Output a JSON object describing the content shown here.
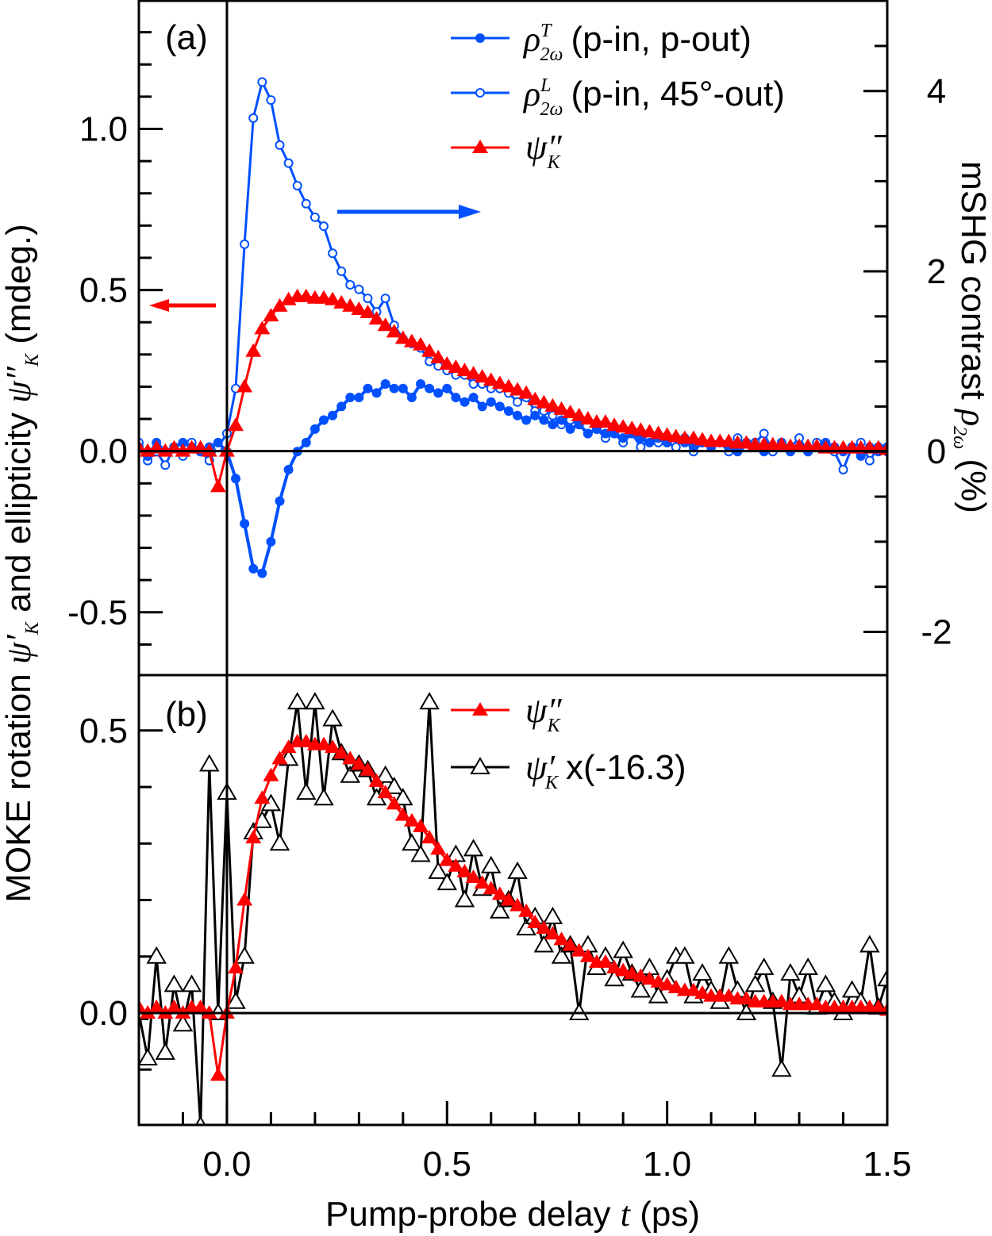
{
  "chart_data": [
    {
      "type": "line",
      "panel_label": "(a)",
      "xlim": [
        -0.2,
        1.5
      ],
      "ylim_left": [
        -0.695,
        1.4
      ],
      "ylim_right": [
        -2.48,
        5.01
      ],
      "left_ticks": [
        "1.0",
        "0.5",
        "0.0",
        "-0.5"
      ],
      "right_ticks": [
        "4",
        "2",
        "0",
        "-2"
      ],
      "x": [
        -0.2,
        -0.18,
        -0.16,
        -0.14,
        -0.12,
        -0.1,
        -0.08,
        -0.06,
        -0.04,
        -0.02,
        0.0,
        0.02,
        0.04,
        0.06,
        0.08,
        0.1,
        0.12,
        0.14,
        0.16,
        0.18,
        0.2,
        0.22,
        0.24,
        0.26,
        0.28,
        0.3,
        0.32,
        0.34,
        0.36,
        0.38,
        0.4,
        0.42,
        0.44,
        0.46,
        0.48,
        0.5,
        0.52,
        0.54,
        0.56,
        0.58,
        0.6,
        0.62,
        0.64,
        0.66,
        0.68,
        0.7,
        0.72,
        0.74,
        0.76,
        0.78,
        0.8,
        0.82,
        0.84,
        0.86,
        0.88,
        0.9,
        0.92,
        0.94,
        0.96,
        0.98,
        1.0,
        1.02,
        1.04,
        1.06,
        1.08,
        1.1,
        1.12,
        1.14,
        1.16,
        1.18,
        1.2,
        1.22,
        1.24,
        1.26,
        1.28,
        1.3,
        1.32,
        1.34,
        1.36,
        1.38,
        1.4,
        1.42,
        1.44,
        1.46,
        1.48,
        1.5
      ],
      "series": [
        {
          "name": "rho_T",
          "axis": "right",
          "color": "#0050ff",
          "marker": "filled-circle",
          "values": [
            0.05,
            -0.05,
            0.1,
            0.0,
            0.05,
            0.1,
            0.05,
            0.0,
            0.05,
            0.1,
            0.0,
            -0.3,
            -0.8,
            -1.3,
            -1.35,
            -1.0,
            -0.55,
            -0.2,
            0.0,
            0.1,
            0.25,
            0.35,
            0.4,
            0.5,
            0.6,
            0.6,
            0.7,
            0.65,
            0.75,
            0.7,
            0.7,
            0.6,
            0.75,
            0.7,
            0.65,
            0.7,
            0.6,
            0.55,
            0.6,
            0.5,
            0.55,
            0.5,
            0.45,
            0.4,
            0.35,
            0.4,
            0.35,
            0.3,
            0.35,
            0.25,
            0.3,
            0.2,
            0.25,
            0.2,
            0.2,
            0.15,
            0.2,
            0.15,
            0.1,
            0.15,
            0.1,
            0.15,
            0.1,
            0.05,
            0.1,
            0.05,
            0.1,
            0.05,
            0.0,
            0.1,
            0.05,
            0.0,
            0.05,
            0.1,
            0.0,
            0.05,
            0.0,
            0.05,
            0.1,
            0.05,
            0.0,
            0.05,
            -0.05,
            0.05,
            0.0,
            0.05
          ]
        },
        {
          "name": "rho_L",
          "axis": "right",
          "color": "#0050ff",
          "marker": "open-circle",
          "values": [
            0.1,
            -0.1,
            0.0,
            -0.15,
            0.05,
            -0.05,
            0.1,
            0.0,
            -0.1,
            0.05,
            0.2,
            0.7,
            2.3,
            3.7,
            4.1,
            3.9,
            3.4,
            3.2,
            2.95,
            2.75,
            2.6,
            2.5,
            2.2,
            2.0,
            1.85,
            1.8,
            1.7,
            1.55,
            1.7,
            1.4,
            1.25,
            1.2,
            1.15,
            1.0,
            0.95,
            0.9,
            0.85,
            0.85,
            0.75,
            0.75,
            0.7,
            0.7,
            0.65,
            0.55,
            0.6,
            0.45,
            0.45,
            0.4,
            0.3,
            0.35,
            0.3,
            0.2,
            0.25,
            0.15,
            0.2,
            0.1,
            0.2,
            0.05,
            0.15,
            0.1,
            0.1,
            0.05,
            0.15,
            0.0,
            0.1,
            0.05,
            0.1,
            0.0,
            0.15,
            0.05,
            0.1,
            0.2,
            0.0,
            0.1,
            0.05,
            0.15,
            0.0,
            0.1,
            0.05,
            0.0,
            -0.2,
            0.05,
            0.1,
            -0.1,
            0.05,
            0.0
          ]
        },
        {
          "name": "psi_K_dd",
          "axis": "left",
          "color": "#ff0000",
          "marker": "filled-triangle",
          "values": [
            0.01,
            0.0,
            0.01,
            0.0,
            0.01,
            0.0,
            0.01,
            0.01,
            0.0,
            -0.11,
            0.0,
            0.08,
            0.2,
            0.31,
            0.38,
            0.42,
            0.45,
            0.47,
            0.48,
            0.48,
            0.475,
            0.475,
            0.47,
            0.46,
            0.45,
            0.44,
            0.43,
            0.41,
            0.39,
            0.37,
            0.35,
            0.34,
            0.33,
            0.31,
            0.29,
            0.27,
            0.26,
            0.25,
            0.24,
            0.23,
            0.22,
            0.21,
            0.2,
            0.19,
            0.18,
            0.16,
            0.15,
            0.14,
            0.13,
            0.12,
            0.11,
            0.1,
            0.09,
            0.09,
            0.08,
            0.075,
            0.07,
            0.065,
            0.06,
            0.055,
            0.05,
            0.045,
            0.04,
            0.04,
            0.035,
            0.03,
            0.03,
            0.03,
            0.025,
            0.025,
            0.02,
            0.02,
            0.02,
            0.02,
            0.015,
            0.015,
            0.015,
            0.015,
            0.01,
            0.01,
            0.01,
            0.01,
            0.01,
            0.01,
            0.01,
            0.005
          ]
        }
      ]
    },
    {
      "type": "line",
      "panel_label": "(b)",
      "xlim": [
        -0.2,
        1.5
      ],
      "ylim": [
        -0.198,
        0.598
      ],
      "left_ticks": [
        "0.5",
        "0.0"
      ],
      "x_ticks": [
        "0.0",
        "0.5",
        "1.0",
        "1.5"
      ],
      "series": [
        {
          "name": "psi_K_dd",
          "color": "#ff0000",
          "marker": "filled-triangle",
          "same_as": "panel-a"
        },
        {
          "name": "psi_K_d_scaled",
          "color": "#000000",
          "marker": "open-triangle",
          "values": [
            0.0,
            -0.08,
            0.1,
            -0.07,
            0.05,
            -0.02,
            0.05,
            -0.2,
            0.44,
            0.0,
            0.39,
            0.02,
            0.1,
            0.32,
            0.34,
            0.37,
            0.3,
            0.45,
            0.55,
            0.39,
            0.55,
            0.38,
            0.52,
            0.46,
            0.42,
            0.44,
            0.43,
            0.38,
            0.42,
            0.4,
            0.38,
            0.3,
            0.28,
            0.55,
            0.25,
            0.23,
            0.28,
            0.2,
            0.29,
            0.22,
            0.26,
            0.18,
            0.2,
            0.25,
            0.15,
            0.17,
            0.12,
            0.17,
            0.1,
            0.12,
            0.0,
            0.12,
            0.08,
            0.1,
            0.06,
            0.11,
            0.07,
            0.04,
            0.08,
            0.03,
            0.06,
            0.1,
            0.1,
            0.03,
            0.07,
            0.04,
            0.02,
            0.1,
            0.04,
            0.0,
            0.05,
            0.08,
            0.02,
            -0.1,
            0.07,
            0.03,
            0.08,
            0.01,
            0.05,
            0.02,
            0.0,
            0.04,
            0.02,
            0.12,
            0.01,
            0.06
          ]
        }
      ]
    }
  ],
  "labels": {
    "xlabel_pre": "Pump-probe delay ",
    "xlabel_var": "t",
    "xlabel_post": " (ps)",
    "ylabel_left_pre": "MOKE rotation ",
    "ylabel_left_mid": " and ellipticity ",
    "ylabel_left_post": " (mdeg.)",
    "ylabel_right_pre": "mSHG contrast ",
    "ylabel_right_post": " (%)",
    "psi": "ψ",
    "rho": "ρ",
    "sub_K": "K",
    "sub_2w": "2ω",
    "prime": "′",
    "dprime": "″",
    "sup_T": "T",
    "sup_L": "L"
  },
  "legend_a": [
    "(p-in, p-out)",
    "(p-in, 45°-out)"
  ],
  "legend_b_scale": "x(-16.3)",
  "annotations": {
    "left_arrow_color": "#ff0000",
    "right_arrow_color": "#0050ff"
  }
}
